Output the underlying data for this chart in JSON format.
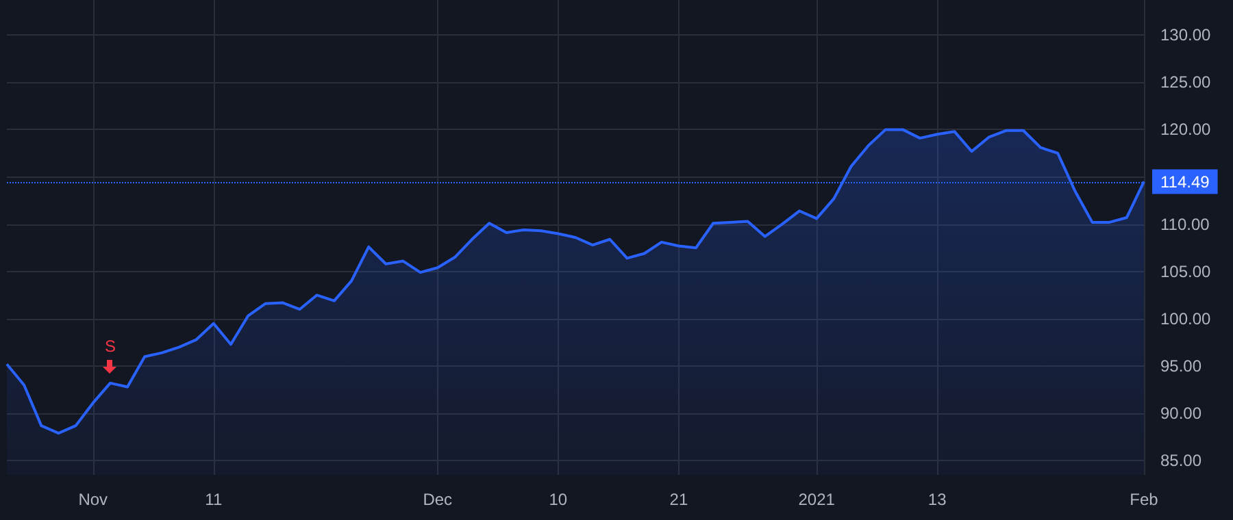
{
  "chart_data": {
    "type": "area",
    "categories": [
      null,
      null,
      null,
      null,
      null,
      "Nov",
      null,
      null,
      null,
      null,
      null,
      null,
      "11",
      null,
      null,
      null,
      null,
      null,
      null,
      null,
      null,
      null,
      null,
      null,
      null,
      "Dec",
      null,
      null,
      null,
      null,
      null,
      null,
      "10",
      null,
      null,
      null,
      null,
      null,
      null,
      "21",
      null,
      null,
      null,
      null,
      null,
      null,
      null,
      "2021",
      null,
      null,
      null,
      null,
      null,
      null,
      "13",
      null,
      null,
      null,
      null,
      null,
      null,
      null,
      null,
      null,
      null,
      null,
      "Feb"
    ],
    "series": [
      {
        "color": "#2962ff",
        "values": [
          95.2,
          93.0,
          88.7,
          87.9,
          88.7,
          91.1,
          93.2,
          92.8,
          96.0,
          96.4,
          97.0,
          97.8,
          99.5,
          97.3,
          100.3,
          101.6,
          101.7,
          101.0,
          102.5,
          101.9,
          104.0,
          107.6,
          105.8,
          106.1,
          104.9,
          105.4,
          106.5,
          108.4,
          110.1,
          109.1,
          109.4,
          109.3,
          109.0,
          108.6,
          107.8,
          108.4,
          106.4,
          106.9,
          108.1,
          107.7,
          107.5,
          110.1,
          110.2,
          110.3,
          108.7,
          110.0,
          111.4,
          110.6,
          112.7,
          116.1,
          118.3,
          120.0,
          120.0,
          119.1,
          119.5,
          119.8,
          117.7,
          119.2,
          119.9,
          119.9,
          118.1,
          117.5,
          113.5,
          110.2,
          110.2,
          110.7,
          114.5
        ]
      }
    ],
    "ylim": [
      83.5,
      133.7
    ],
    "yticks": [
      {
        "value": 85,
        "label": "85.00"
      },
      {
        "value": 90,
        "label": "90.00"
      },
      {
        "value": 95,
        "label": "95.00"
      },
      {
        "value": 100,
        "label": "100.00"
      },
      {
        "value": 105,
        "label": "105.00"
      },
      {
        "value": 110,
        "label": "110.00"
      },
      {
        "value": 115,
        "label": null
      },
      {
        "value": 120,
        "label": "120.00"
      },
      {
        "value": 125,
        "label": "125.00"
      },
      {
        "value": 130,
        "label": "130.00"
      }
    ],
    "ref_lines": [
      {
        "axis": "y",
        "value": 114.49,
        "label": "114.49",
        "color": "#2962ff",
        "line_style": "dotted"
      }
    ],
    "annotations": [
      {
        "text": "S",
        "y": 93.2
      }
    ],
    "grid": true,
    "marker": "none",
    "line_style": "solid"
  }
}
